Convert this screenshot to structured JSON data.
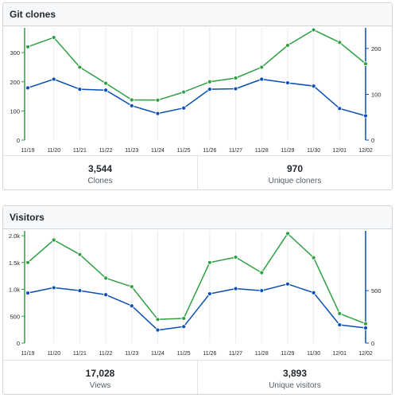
{
  "clones_panel": {
    "title": "Git clones",
    "stats": [
      {
        "value": "3,544",
        "label": "Clones"
      },
      {
        "value": "970",
        "label": "Unique cloners"
      }
    ]
  },
  "visitors_panel": {
    "title": "Visitors",
    "stats": [
      {
        "value": "17,028",
        "label": "Views"
      },
      {
        "value": "3,893",
        "label": "Unique visitors"
      }
    ]
  },
  "colors": {
    "total": "#2ea043",
    "unique": "#0a4fb4",
    "grid": "#eaecef",
    "axis_text": "#24292e"
  },
  "chart_data": [
    {
      "type": "line",
      "x": [
        "11/19",
        "11/20",
        "11/21",
        "11/22",
        "11/23",
        "11/24",
        "11/25",
        "11/26",
        "11/27",
        "11/28",
        "11/29",
        "11/30",
        "12/01",
        "12/02"
      ],
      "left_axis": {
        "ticks": [
          0,
          100,
          200,
          300
        ],
        "tick_labels": [
          "0",
          "100",
          "200",
          "300"
        ],
        "lim": [
          0,
          385
        ]
      },
      "right_axis": {
        "ticks": [
          0,
          100,
          200
        ],
        "tick_labels": [
          "0",
          "100",
          "200"
        ],
        "lim": [
          0,
          245
        ]
      },
      "series": [
        {
          "axis": "left",
          "color": "#2ea043",
          "values": [
            320,
            352,
            250,
            195,
            138,
            137,
            165,
            200,
            213,
            250,
            325,
            378,
            335,
            262
          ]
        },
        {
          "axis": "right",
          "color": "#0a4fb4",
          "values": [
            114,
            133,
            111,
            109,
            75,
            58,
            70,
            111,
            112,
            133,
            125,
            118,
            69,
            53
          ]
        }
      ]
    },
    {
      "type": "line",
      "x": [
        "11/19",
        "11/20",
        "11/21",
        "11/22",
        "11/23",
        "11/24",
        "11/25",
        "11/26",
        "11/27",
        "11/28",
        "11/29",
        "11/30",
        "12/01",
        "12/02"
      ],
      "left_axis": {
        "ticks": [
          0,
          500,
          1000,
          1500,
          2000
        ],
        "tick_labels": [
          "0",
          "500",
          "1.0k",
          "1.5k",
          "2.0k"
        ],
        "lim": [
          0,
          2090
        ]
      },
      "right_axis": {
        "ticks": [
          0,
          500
        ],
        "tick_labels": [
          "0",
          "500"
        ],
        "lim": [
          0,
          1070
        ]
      },
      "series": [
        {
          "axis": "left",
          "color": "#2ea043",
          "values": [
            1500,
            1920,
            1650,
            1210,
            1050,
            440,
            460,
            1500,
            1600,
            1310,
            2040,
            1590,
            550,
            360
          ]
        },
        {
          "axis": "right",
          "color": "#0a4fb4",
          "values": [
            477,
            528,
            500,
            461,
            355,
            124,
            157,
            470,
            519,
            500,
            563,
            480,
            174,
            144
          ]
        }
      ]
    }
  ]
}
